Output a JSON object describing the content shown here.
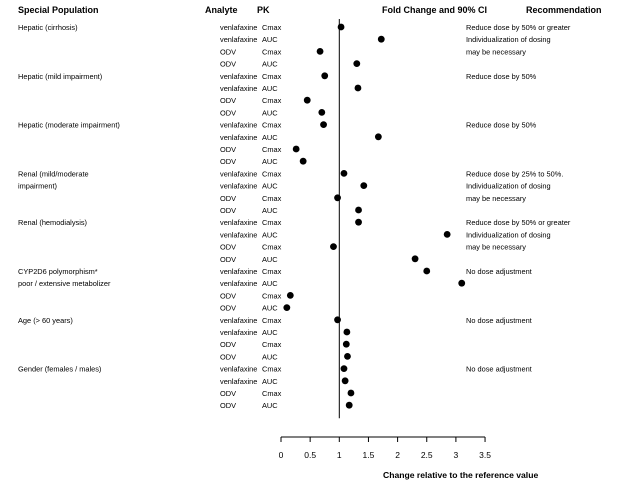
{
  "chart_data": {
    "type": "forest",
    "headers": {
      "population": "Special Population",
      "analyte": "Analyte",
      "pk": "PK",
      "fold_change": "Fold Change and 90% CI",
      "recommendation": "Recommendation"
    },
    "xlabel": "Change relative to the reference value",
    "xlim": [
      0,
      3.5
    ],
    "xticks": [
      "0",
      "0.5",
      "1",
      "1.5",
      "2",
      "2.5",
      "3",
      "3.5"
    ],
    "reference_line": 1,
    "groups": [
      {
        "population": [
          "Hepatic (cirrhosis)"
        ],
        "recommendation": [
          "Reduce dose by 50% or greater",
          "Individualization of dosing",
          "may be necessary"
        ],
        "rows": [
          {
            "analyte": "venlafaxine",
            "pk": "Cmax",
            "value": 1.03
          },
          {
            "analyte": "venlafaxine",
            "pk": "AUC",
            "value": 1.72
          },
          {
            "analyte": "ODV",
            "pk": "Cmax",
            "value": 0.67
          },
          {
            "analyte": "ODV",
            "pk": "AUC",
            "value": 1.3
          }
        ]
      },
      {
        "population": [
          "Hepatic (mild impairment)"
        ],
        "recommendation": [
          "Reduce dose by 50%"
        ],
        "rows": [
          {
            "analyte": "venlafaxine",
            "pk": "Cmax",
            "value": 0.75
          },
          {
            "analyte": "venlafaxine",
            "pk": "AUC",
            "value": 1.32
          },
          {
            "analyte": "ODV",
            "pk": "Cmax",
            "value": 0.45
          },
          {
            "analyte": "ODV",
            "pk": "AUC",
            "value": 0.7
          }
        ]
      },
      {
        "population": [
          "Hepatic (moderate impairment)"
        ],
        "recommendation": [
          "Reduce dose by 50%"
        ],
        "rows": [
          {
            "analyte": "venlafaxine",
            "pk": "Cmax",
            "value": 0.73
          },
          {
            "analyte": "venlafaxine",
            "pk": "AUC",
            "value": 1.67
          },
          {
            "analyte": "ODV",
            "pk": "Cmax",
            "value": 0.26
          },
          {
            "analyte": "ODV",
            "pk": "AUC",
            "value": 0.38
          }
        ]
      },
      {
        "population": [
          "Renal (mild/moderate",
          "impairment)"
        ],
        "recommendation": [
          "Reduce dose by 25% to 50%.",
          "Individualization of dosing",
          "may be necessary"
        ],
        "rows": [
          {
            "analyte": "venlafaxine",
            "pk": "Cmax",
            "value": 1.08
          },
          {
            "analyte": "venlafaxine",
            "pk": "AUC",
            "value": 1.42
          },
          {
            "analyte": "ODV",
            "pk": "Cmax",
            "value": 0.97
          },
          {
            "analyte": "ODV",
            "pk": "AUC",
            "value": 1.33
          }
        ]
      },
      {
        "population": [
          "Renal (hemodialysis)"
        ],
        "recommendation": [
          "Reduce dose by 50% or greater",
          "Individualization of dosing",
          "may be necessary"
        ],
        "rows": [
          {
            "analyte": "venlafaxine",
            "pk": "Cmax",
            "value": 1.33
          },
          {
            "analyte": "venlafaxine",
            "pk": "AUC",
            "value": 2.85
          },
          {
            "analyte": "ODV",
            "pk": "Cmax",
            "value": 0.9
          },
          {
            "analyte": "ODV",
            "pk": "AUC",
            "value": 2.3
          }
        ]
      },
      {
        "population": [
          "CYP2D6 polymorphism*",
          "poor / extensive metabolizer"
        ],
        "recommendation": [
          "No dose adjustment"
        ],
        "rows": [
          {
            "analyte": "venlafaxine",
            "pk": "Cmax",
            "value": 2.5
          },
          {
            "analyte": "venlafaxine",
            "pk": "AUC",
            "value": 3.1
          },
          {
            "analyte": "ODV",
            "pk": "Cmax",
            "value": 0.16
          },
          {
            "analyte": "ODV",
            "pk": "AUC",
            "value": 0.1
          }
        ]
      },
      {
        "population": [
          "Age (> 60 years)"
        ],
        "recommendation": [
          "No dose adjustment"
        ],
        "rows": [
          {
            "analyte": "venlafaxine",
            "pk": "Cmax",
            "value": 0.97
          },
          {
            "analyte": "venlafaxine",
            "pk": "AUC",
            "value": 1.13
          },
          {
            "analyte": "ODV",
            "pk": "Cmax",
            "value": 1.12
          },
          {
            "analyte": "ODV",
            "pk": "AUC",
            "value": 1.14
          }
        ]
      },
      {
        "population": [
          "Gender (females / males)"
        ],
        "recommendation": [
          "No dose adjustment"
        ],
        "rows": [
          {
            "analyte": "venlafaxine",
            "pk": "Cmax",
            "value": 1.08
          },
          {
            "analyte": "venlafaxine",
            "pk": "AUC",
            "value": 1.1
          },
          {
            "analyte": "ODV",
            "pk": "Cmax",
            "value": 1.2
          },
          {
            "analyte": "ODV",
            "pk": "AUC",
            "value": 1.17
          }
        ]
      }
    ]
  }
}
